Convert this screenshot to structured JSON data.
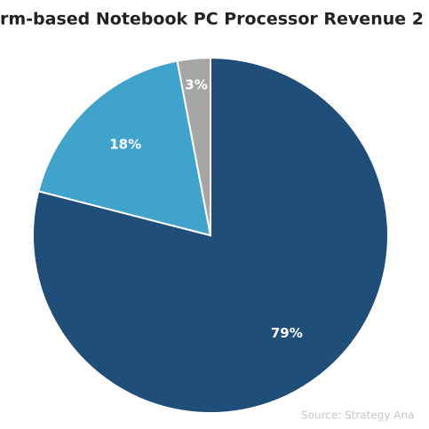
{
  "chart_data": {
    "type": "pie",
    "title": "rm-based Notebook PC Processor Revenue 2",
    "values": [
      79,
      18,
      3
    ],
    "value_labels": [
      "79%",
      "18%",
      "3%"
    ],
    "colors": [
      "#1f4e79",
      "#3fa3cc",
      "#a6a6a6"
    ],
    "source": "Source: Strategy Ana"
  }
}
